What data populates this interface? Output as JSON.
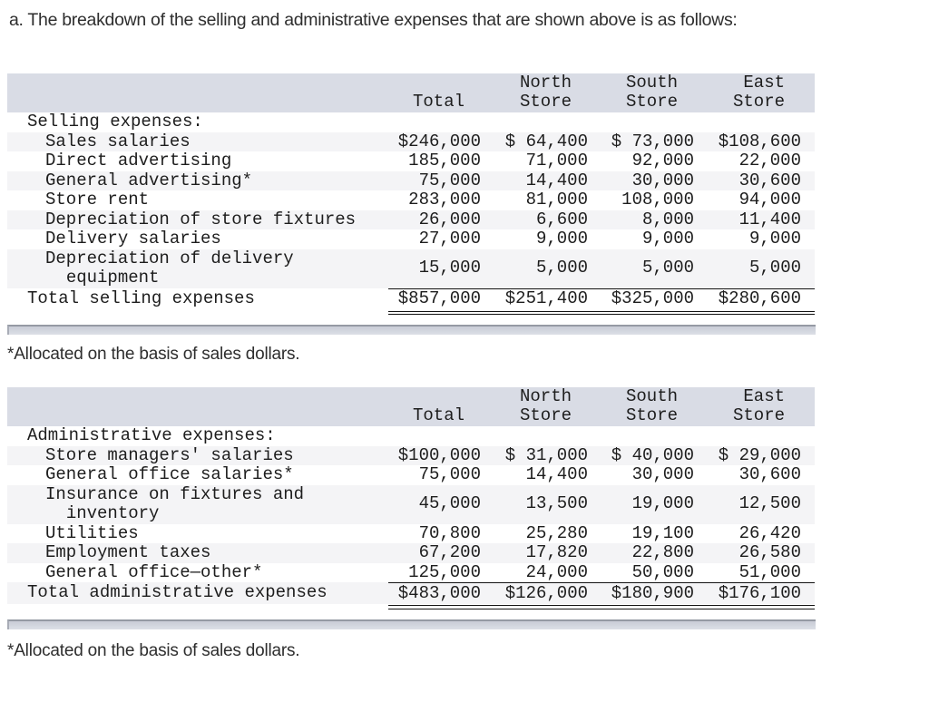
{
  "title": "a. The breakdown of the selling and administrative expenses that are shown above is as follows:",
  "footnote_1": "*Allocated on the basis of sales dollars.",
  "footnote_2": "*Allocated on the basis of sales dollars.",
  "colors": {
    "header_bg": "#d9dce5",
    "stripe_bg": "#f4f4f6",
    "rule": "#121212",
    "scrollbar_edge": "#959aa4",
    "text": "#1d1d1d"
  },
  "tables": [
    {
      "name": "selling-expenses",
      "header": [
        {
          "line1": "",
          "line2": "Total"
        },
        {
          "line1": "North",
          "line2": "Store"
        },
        {
          "line1": "South",
          "line2": "Store"
        },
        {
          "line1": "East",
          "line2": "Store"
        }
      ],
      "rows": [
        {
          "label": "Selling expenses:",
          "indent": 0,
          "cells": [
            "",
            "",
            "",
            ""
          ]
        },
        {
          "label": "Sales salaries",
          "indent": 1,
          "cells": [
            "$246,000",
            "$ 64,400",
            "$ 73,000",
            "$108,600"
          ]
        },
        {
          "label": "Direct advertising",
          "indent": 1,
          "cells": [
            "185,000",
            "71,000",
            "92,000",
            "22,000"
          ]
        },
        {
          "label": "General advertising*",
          "indent": 1,
          "cells": [
            "75,000",
            "14,400",
            "30,000",
            "30,600"
          ]
        },
        {
          "label": "Store rent",
          "indent": 1,
          "cells": [
            "283,000",
            "81,000",
            "108,000",
            "94,000"
          ]
        },
        {
          "label": "Depreciation of store fixtures",
          "indent": 1,
          "cells": [
            "26,000",
            "6,600",
            "8,000",
            "11,400"
          ]
        },
        {
          "label": "Delivery salaries",
          "indent": 1,
          "cells": [
            "27,000",
            "9,000",
            "9,000",
            "9,000"
          ]
        },
        {
          "label": "Depreciation of delivery\n  equipment",
          "indent": 1,
          "cells": [
            "15,000",
            "5,000",
            "5,000",
            "5,000"
          ]
        },
        {
          "label": "Total selling expenses",
          "indent": 0,
          "is_total": true,
          "cells": [
            "$857,000",
            "$251,400",
            "$325,000",
            "$280,600"
          ]
        }
      ]
    },
    {
      "name": "administrative-expenses",
      "header": [
        {
          "line1": "",
          "line2": "Total"
        },
        {
          "line1": "North",
          "line2": "Store"
        },
        {
          "line1": "South",
          "line2": "Store"
        },
        {
          "line1": "East",
          "line2": "Store"
        }
      ],
      "rows": [
        {
          "label": "Administrative expenses:",
          "indent": 0,
          "cells": [
            "",
            "",
            "",
            ""
          ]
        },
        {
          "label": "Store managers' salaries",
          "indent": 1,
          "cells": [
            "$100,000",
            "$ 31,000",
            "$ 40,000",
            "$ 29,000"
          ]
        },
        {
          "label": "General office salaries*",
          "indent": 1,
          "cells": [
            "75,000",
            "14,400",
            "30,000",
            "30,600"
          ]
        },
        {
          "label": "Insurance on fixtures and\n  inventory",
          "indent": 1,
          "cells": [
            "45,000",
            "13,500",
            "19,000",
            "12,500"
          ]
        },
        {
          "label": "Utilities",
          "indent": 1,
          "cells": [
            "70,800",
            "25,280",
            "19,100",
            "26,420"
          ]
        },
        {
          "label": "Employment taxes",
          "indent": 1,
          "cells": [
            "67,200",
            "17,820",
            "22,800",
            "26,580"
          ]
        },
        {
          "label": "General office—other*",
          "indent": 1,
          "cells": [
            "125,000",
            "24,000",
            "50,000",
            "51,000"
          ]
        },
        {
          "label": "Total administrative expenses",
          "indent": 0,
          "is_total": true,
          "cells": [
            "$483,000",
            "$126,000",
            "$180,900",
            "$176,100"
          ]
        }
      ]
    }
  ]
}
